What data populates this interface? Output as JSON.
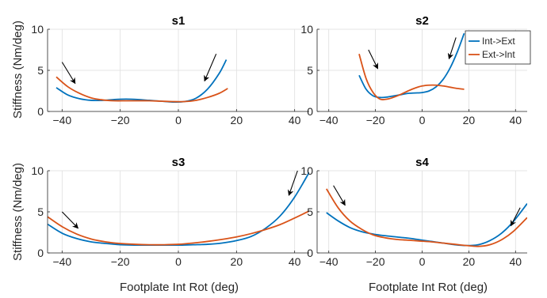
{
  "figure": {
    "xlabel": "Footplate Int Rot (deg)",
    "ylabel": "Stiffness (Nm/deg)"
  },
  "legend": {
    "location": "top-right of s2",
    "entries": [
      {
        "name": "Int->Ext",
        "color": "#0072BD"
      },
      {
        "name": "Ext->Int",
        "color": "#D95319"
      }
    ]
  },
  "chart_data": [
    {
      "type": "line",
      "title": "s1",
      "xlim": [
        -45,
        45
      ],
      "ylim": [
        0,
        10
      ],
      "xticks": [
        -40,
        -20,
        0,
        20,
        40
      ],
      "yticks": [
        0,
        5,
        10
      ],
      "grid": true,
      "series": [
        {
          "name": "Int->Ext",
          "color": "#0072BD",
          "x": [
            -42,
            -38,
            -34,
            -30,
            -26,
            -22,
            -18,
            -14,
            -10,
            -6,
            -2,
            2,
            6,
            10,
            14,
            16.5
          ],
          "y": [
            2.9,
            2.0,
            1.55,
            1.35,
            1.35,
            1.45,
            1.5,
            1.45,
            1.35,
            1.25,
            1.15,
            1.2,
            1.6,
            2.7,
            4.6,
            6.3
          ]
        },
        {
          "name": "Ext->Int",
          "color": "#D95319",
          "x": [
            -42,
            -38,
            -34,
            -30,
            -26,
            -22,
            -18,
            -14,
            -10,
            -6,
            -2,
            2,
            6,
            10,
            14,
            17
          ],
          "y": [
            4.2,
            3.0,
            2.2,
            1.65,
            1.4,
            1.3,
            1.3,
            1.3,
            1.3,
            1.25,
            1.2,
            1.2,
            1.35,
            1.7,
            2.2,
            2.8
          ]
        }
      ]
    },
    {
      "type": "line",
      "title": "s2",
      "xlim": [
        -45,
        45
      ],
      "ylim": [
        0,
        10
      ],
      "xticks": [
        -40,
        -20,
        0,
        20,
        40
      ],
      "yticks": [
        0,
        5,
        10
      ],
      "grid": true,
      "series": [
        {
          "name": "Int->Ext",
          "color": "#0072BD",
          "x": [
            -27,
            -24,
            -21,
            -18,
            -15,
            -12,
            -9,
            -6,
            -3,
            0,
            3,
            6,
            9,
            12,
            15,
            18
          ],
          "y": [
            4.4,
            2.7,
            1.9,
            1.7,
            1.75,
            1.9,
            2.05,
            2.2,
            2.25,
            2.3,
            2.5,
            3.0,
            3.9,
            5.3,
            7.2,
            9.5
          ]
        },
        {
          "name": "Ext->Int",
          "color": "#D95319",
          "x": [
            -27,
            -24,
            -21,
            -18,
            -15,
            -12,
            -9,
            -6,
            -3,
            0,
            3,
            6,
            9,
            12,
            15,
            18
          ],
          "y": [
            7.0,
            4.0,
            2.3,
            1.5,
            1.5,
            1.75,
            2.1,
            2.5,
            2.85,
            3.1,
            3.2,
            3.2,
            3.1,
            2.95,
            2.8,
            2.7
          ]
        }
      ]
    },
    {
      "type": "line",
      "title": "s3",
      "xlim": [
        -45,
        45
      ],
      "ylim": [
        0,
        10
      ],
      "xticks": [
        -40,
        -20,
        0,
        20,
        40
      ],
      "yticks": [
        0,
        5,
        10
      ],
      "grid": true,
      "series": [
        {
          "name": "Int->Ext",
          "color": "#0072BD",
          "x": [
            -45,
            -40,
            -35,
            -30,
            -25,
            -20,
            -15,
            -10,
            -5,
            0,
            5,
            10,
            15,
            20,
            25,
            30,
            35,
            40,
            45
          ],
          "y": [
            3.5,
            2.4,
            1.75,
            1.35,
            1.15,
            1.0,
            0.95,
            0.95,
            0.95,
            0.95,
            1.0,
            1.05,
            1.2,
            1.5,
            2.0,
            3.0,
            4.5,
            6.8,
            9.8
          ]
        },
        {
          "name": "Ext->Int",
          "color": "#D95319",
          "x": [
            -45,
            -40,
            -35,
            -30,
            -25,
            -20,
            -15,
            -10,
            -5,
            0,
            5,
            10,
            15,
            20,
            25,
            30,
            35,
            40,
            45
          ],
          "y": [
            4.4,
            3.2,
            2.3,
            1.7,
            1.35,
            1.15,
            1.05,
            1.0,
            1.0,
            1.05,
            1.2,
            1.4,
            1.65,
            1.95,
            2.35,
            2.85,
            3.45,
            4.25,
            5.1
          ]
        }
      ]
    },
    {
      "type": "line",
      "title": "s4",
      "xlim": [
        -45,
        45
      ],
      "ylim": [
        0,
        10
      ],
      "xticks": [
        -40,
        -20,
        0,
        20,
        40
      ],
      "yticks": [
        0,
        5,
        10
      ],
      "grid": true,
      "series": [
        {
          "name": "Int->Ext",
          "color": "#0072BD",
          "x": [
            -41,
            -36,
            -31,
            -26,
            -21,
            -16,
            -11,
            -6,
            -1,
            4,
            9,
            14,
            19,
            24,
            29,
            34,
            39,
            45
          ],
          "y": [
            4.9,
            3.9,
            3.1,
            2.6,
            2.3,
            2.1,
            1.95,
            1.8,
            1.6,
            1.4,
            1.2,
            1.0,
            0.9,
            1.0,
            1.5,
            2.4,
            3.8,
            6.0
          ]
        },
        {
          "name": "Ext->Int",
          "color": "#D95319",
          "x": [
            -41,
            -36,
            -31,
            -26,
            -21,
            -16,
            -11,
            -6,
            -1,
            4,
            9,
            14,
            19,
            24,
            29,
            34,
            39,
            45
          ],
          "y": [
            7.8,
            5.5,
            3.9,
            2.9,
            2.2,
            1.85,
            1.65,
            1.55,
            1.45,
            1.35,
            1.2,
            1.05,
            0.9,
            0.8,
            1.0,
            1.6,
            2.6,
            4.3
          ]
        }
      ]
    }
  ]
}
